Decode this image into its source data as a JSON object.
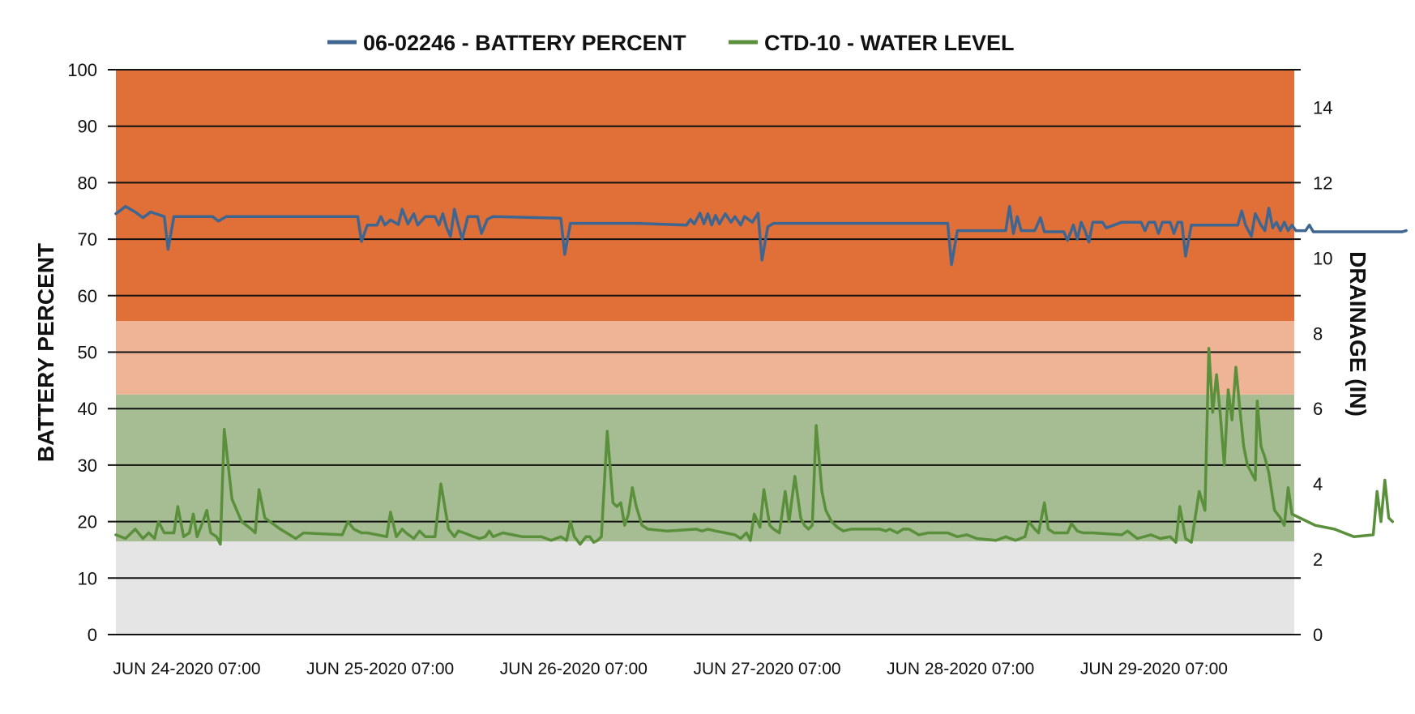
{
  "chart_data": {
    "type": "line",
    "title": "",
    "legend": {
      "placement": "top-center",
      "entries": [
        {
          "label": "06-02246 - BATTERY PERCENT",
          "color": "#3e6690"
        },
        {
          "label": "CTD-10 - WATER LEVEL",
          "color": "#5a8f3c"
        }
      ]
    },
    "x_axis": {
      "ticks": [
        "JUN 24-2020  07:00",
        "JUN 25-2020  07:00",
        "JUN 26-2020  07:00",
        "JUN 27-2020  07:00",
        "JUN 28-2020  07:00",
        "JUN 29-2020  07:00"
      ],
      "range_days": [
        23.9,
        30.0
      ]
    },
    "y_axis_left": {
      "label": "BATTERY PERCENT",
      "ylim": [
        0,
        100
      ],
      "ticks": [
        0,
        10,
        20,
        30,
        40,
        50,
        60,
        70,
        80,
        90,
        100
      ]
    },
    "y_axis_right": {
      "label": "DRAINAGE (IN)",
      "ylim": [
        0,
        15
      ],
      "ticks": [
        0,
        2,
        4,
        6,
        8,
        10,
        12,
        14
      ]
    },
    "grid": true,
    "bands": [
      {
        "from": 0,
        "to": 16.5,
        "color": "#e5e5e5"
      },
      {
        "from": 16.5,
        "to": 42.5,
        "color": "#a6bd93"
      },
      {
        "from": 42.5,
        "to": 55.5,
        "color": "#efb496"
      },
      {
        "from": 55.5,
        "to": 100,
        "color": "#e07038"
      }
    ],
    "series": [
      {
        "name": "06-02246 - BATTERY PERCENT",
        "axis": "left",
        "color": "#3e6690",
        "points": [
          [
            23.9,
            74.5
          ],
          [
            23.95,
            75.8
          ],
          [
            24.0,
            74.8
          ],
          [
            24.04,
            73.8
          ],
          [
            24.08,
            74.8
          ],
          [
            24.15,
            74.0
          ],
          [
            24.17,
            68.2
          ],
          [
            24.2,
            74.0
          ],
          [
            24.4,
            74.0
          ],
          [
            24.43,
            73.2
          ],
          [
            24.47,
            74.0
          ],
          [
            24.7,
            74.0
          ],
          [
            25.15,
            74.0
          ],
          [
            25.17,
            69.6
          ],
          [
            25.2,
            72.5
          ],
          [
            25.25,
            72.5
          ],
          [
            25.27,
            74.0
          ],
          [
            25.29,
            72.5
          ],
          [
            25.32,
            73.4
          ],
          [
            25.36,
            72.6
          ],
          [
            25.38,
            75.3
          ],
          [
            25.41,
            72.7
          ],
          [
            25.44,
            74.5
          ],
          [
            25.46,
            72.5
          ],
          [
            25.5,
            74.0
          ],
          [
            25.55,
            74.0
          ],
          [
            25.57,
            72.5
          ],
          [
            25.59,
            74.5
          ],
          [
            25.61,
            72.0
          ],
          [
            25.63,
            70.5
          ],
          [
            25.65,
            75.3
          ],
          [
            25.67,
            72.5
          ],
          [
            25.69,
            70.0
          ],
          [
            25.72,
            74.0
          ],
          [
            25.77,
            74.0
          ],
          [
            25.79,
            71.0
          ],
          [
            25.82,
            73.5
          ],
          [
            25.85,
            74.0
          ],
          [
            26.2,
            73.7
          ],
          [
            26.22,
            67.3
          ],
          [
            26.25,
            72.8
          ],
          [
            26.6,
            72.8
          ],
          [
            26.85,
            72.5
          ],
          [
            26.87,
            73.5
          ],
          [
            26.89,
            72.7
          ],
          [
            26.92,
            74.6
          ],
          [
            26.94,
            72.7
          ],
          [
            26.96,
            74.5
          ],
          [
            26.98,
            72.5
          ],
          [
            27.0,
            74.2
          ],
          [
            27.02,
            72.7
          ],
          [
            27.05,
            74.5
          ],
          [
            27.08,
            73.0
          ],
          [
            27.1,
            74.0
          ],
          [
            27.13,
            72.5
          ],
          [
            27.15,
            74.0
          ],
          [
            27.19,
            73.0
          ],
          [
            27.22,
            74.6
          ],
          [
            27.24,
            66.3
          ],
          [
            27.27,
            72.2
          ],
          [
            27.3,
            72.8
          ],
          [
            27.6,
            72.8
          ],
          [
            28.2,
            72.8
          ],
          [
            28.22,
            65.5
          ],
          [
            28.25,
            71.5
          ],
          [
            28.5,
            71.5
          ],
          [
            28.52,
            75.8
          ],
          [
            28.54,
            71.0
          ],
          [
            28.56,
            74.0
          ],
          [
            28.58,
            71.5
          ],
          [
            28.65,
            71.5
          ],
          [
            28.68,
            73.8
          ],
          [
            28.7,
            71.3
          ],
          [
            28.8,
            71.3
          ],
          [
            28.82,
            69.8
          ],
          [
            28.85,
            72.5
          ],
          [
            28.87,
            70.0
          ],
          [
            28.89,
            73.0
          ],
          [
            28.91,
            71.5
          ],
          [
            28.93,
            69.5
          ],
          [
            28.95,
            73.0
          ],
          [
            29.0,
            73.0
          ],
          [
            29.02,
            72.0
          ],
          [
            29.1,
            73.0
          ],
          [
            29.2,
            73.0
          ],
          [
            29.22,
            71.5
          ],
          [
            29.24,
            73.0
          ],
          [
            29.27,
            73.0
          ],
          [
            29.29,
            71.0
          ],
          [
            29.31,
            73.0
          ],
          [
            29.35,
            73.0
          ],
          [
            29.37,
            71.0
          ],
          [
            29.39,
            73.0
          ],
          [
            29.41,
            73.0
          ],
          [
            29.43,
            67.0
          ],
          [
            29.46,
            72.5
          ],
          [
            29.6,
            72.5
          ],
          [
            29.7,
            72.5
          ],
          [
            29.72,
            75.0
          ],
          [
            29.74,
            72.5
          ],
          [
            29.77,
            70.5
          ],
          [
            29.79,
            74.5
          ],
          [
            29.82,
            72.5
          ],
          [
            29.84,
            71.5
          ],
          [
            29.86,
            75.5
          ],
          [
            29.88,
            72.0
          ],
          [
            29.9,
            73.0
          ],
          [
            29.92,
            71.5
          ],
          [
            29.94,
            73.0
          ],
          [
            29.96,
            71.5
          ],
          [
            29.98,
            72.5
          ],
          [
            30.0,
            71.5
          ],
          [
            30.05,
            71.5
          ],
          [
            30.07,
            72.5
          ],
          [
            30.09,
            71.3
          ],
          [
            30.5,
            71.3
          ],
          [
            30.55,
            71.3
          ],
          [
            30.57,
            71.5
          ]
        ]
      },
      {
        "name": "CTD-10 - WATER LEVEL",
        "axis": "right",
        "color": "#5a8f3c",
        "points": [
          [
            23.9,
            2.65
          ],
          [
            23.95,
            2.55
          ],
          [
            24.0,
            2.8
          ],
          [
            24.04,
            2.55
          ],
          [
            24.07,
            2.7
          ],
          [
            24.1,
            2.55
          ],
          [
            24.12,
            3.0
          ],
          [
            24.15,
            2.7
          ],
          [
            24.2,
            2.7
          ],
          [
            24.22,
            3.4
          ],
          [
            24.25,
            2.6
          ],
          [
            24.28,
            2.7
          ],
          [
            24.3,
            3.2
          ],
          [
            24.32,
            2.6
          ],
          [
            24.35,
            3.0
          ],
          [
            24.37,
            3.3
          ],
          [
            24.39,
            2.7
          ],
          [
            24.42,
            2.6
          ],
          [
            24.44,
            2.4
          ],
          [
            24.46,
            5.45
          ],
          [
            24.5,
            3.6
          ],
          [
            24.55,
            3.0
          ],
          [
            24.6,
            2.8
          ],
          [
            24.62,
            2.7
          ],
          [
            24.64,
            3.85
          ],
          [
            24.67,
            3.1
          ],
          [
            24.75,
            2.8
          ],
          [
            24.83,
            2.55
          ],
          [
            24.87,
            2.7
          ],
          [
            25.07,
            2.65
          ],
          [
            25.1,
            3.0
          ],
          [
            25.13,
            2.8
          ],
          [
            25.17,
            2.7
          ],
          [
            25.2,
            2.7
          ],
          [
            25.3,
            2.6
          ],
          [
            25.32,
            3.25
          ],
          [
            25.35,
            2.6
          ],
          [
            25.38,
            2.8
          ],
          [
            25.4,
            2.7
          ],
          [
            25.44,
            2.55
          ],
          [
            25.47,
            2.75
          ],
          [
            25.5,
            2.6
          ],
          [
            25.55,
            2.6
          ],
          [
            25.58,
            4.0
          ],
          [
            25.6,
            3.4
          ],
          [
            25.62,
            2.8
          ],
          [
            25.65,
            2.6
          ],
          [
            25.67,
            2.75
          ],
          [
            25.7,
            2.7
          ],
          [
            25.75,
            2.6
          ],
          [
            25.78,
            2.55
          ],
          [
            25.81,
            2.6
          ],
          [
            25.83,
            2.75
          ],
          [
            25.85,
            2.6
          ],
          [
            25.9,
            2.7
          ],
          [
            26.0,
            2.6
          ],
          [
            26.1,
            2.6
          ],
          [
            26.15,
            2.5
          ],
          [
            26.2,
            2.6
          ],
          [
            26.23,
            2.5
          ],
          [
            26.25,
            3.0
          ],
          [
            26.27,
            2.6
          ],
          [
            26.3,
            2.4
          ],
          [
            26.33,
            2.6
          ],
          [
            26.35,
            2.6
          ],
          [
            26.37,
            2.45
          ],
          [
            26.39,
            2.5
          ],
          [
            26.41,
            2.6
          ],
          [
            26.44,
            5.4
          ],
          [
            26.47,
            3.5
          ],
          [
            26.49,
            3.4
          ],
          [
            26.51,
            3.5
          ],
          [
            26.53,
            2.9
          ],
          [
            26.55,
            3.2
          ],
          [
            26.57,
            3.9
          ],
          [
            26.59,
            3.4
          ],
          [
            26.62,
            2.9
          ],
          [
            26.65,
            2.8
          ],
          [
            26.75,
            2.75
          ],
          [
            26.9,
            2.8
          ],
          [
            26.93,
            2.75
          ],
          [
            26.96,
            2.8
          ],
          [
            27.0,
            2.75
          ],
          [
            27.05,
            2.7
          ],
          [
            27.1,
            2.65
          ],
          [
            27.13,
            2.55
          ],
          [
            27.16,
            2.7
          ],
          [
            27.18,
            2.5
          ],
          [
            27.2,
            3.2
          ],
          [
            27.23,
            2.85
          ],
          [
            27.25,
            3.85
          ],
          [
            27.28,
            2.9
          ],
          [
            27.3,
            2.8
          ],
          [
            27.33,
            2.7
          ],
          [
            27.36,
            3.8
          ],
          [
            27.38,
            3.0
          ],
          [
            27.41,
            4.2
          ],
          [
            27.44,
            3.1
          ],
          [
            27.46,
            2.9
          ],
          [
            27.48,
            2.8
          ],
          [
            27.5,
            2.9
          ],
          [
            27.52,
            5.55
          ],
          [
            27.55,
            3.8
          ],
          [
            27.57,
            3.3
          ],
          [
            27.6,
            3.0
          ],
          [
            27.63,
            2.85
          ],
          [
            27.66,
            2.75
          ],
          [
            27.7,
            2.8
          ],
          [
            27.75,
            2.8
          ],
          [
            27.85,
            2.8
          ],
          [
            27.88,
            2.75
          ],
          [
            27.9,
            2.8
          ],
          [
            27.94,
            2.7
          ],
          [
            27.97,
            2.8
          ],
          [
            28.0,
            2.8
          ],
          [
            28.05,
            2.65
          ],
          [
            28.1,
            2.7
          ],
          [
            28.2,
            2.7
          ],
          [
            28.25,
            2.6
          ],
          [
            28.3,
            2.65
          ],
          [
            28.35,
            2.55
          ],
          [
            28.45,
            2.5
          ],
          [
            28.5,
            2.6
          ],
          [
            28.55,
            2.5
          ],
          [
            28.6,
            2.6
          ],
          [
            28.62,
            3.0
          ],
          [
            28.65,
            2.8
          ],
          [
            28.67,
            2.7
          ],
          [
            28.7,
            3.5
          ],
          [
            28.72,
            2.8
          ],
          [
            28.75,
            2.7
          ],
          [
            28.82,
            2.7
          ],
          [
            28.84,
            2.95
          ],
          [
            28.87,
            2.75
          ],
          [
            28.9,
            2.7
          ],
          [
            28.95,
            2.7
          ],
          [
            29.1,
            2.65
          ],
          [
            29.13,
            2.75
          ],
          [
            29.18,
            2.55
          ],
          [
            29.25,
            2.65
          ],
          [
            29.3,
            2.55
          ],
          [
            29.35,
            2.6
          ],
          [
            29.38,
            2.45
          ],
          [
            29.4,
            3.4
          ],
          [
            29.43,
            2.55
          ],
          [
            29.46,
            2.45
          ],
          [
            29.5,
            3.8
          ],
          [
            29.53,
            3.3
          ],
          [
            29.55,
            7.6
          ],
          [
            29.57,
            5.9
          ],
          [
            29.59,
            6.9
          ],
          [
            29.61,
            5.8
          ],
          [
            29.63,
            4.5
          ],
          [
            29.65,
            6.5
          ],
          [
            29.67,
            5.7
          ],
          [
            29.69,
            7.1
          ],
          [
            29.71,
            6.0
          ],
          [
            29.73,
            5.0
          ],
          [
            29.75,
            4.5
          ],
          [
            29.77,
            4.3
          ],
          [
            29.79,
            4.1
          ],
          [
            29.8,
            6.2
          ],
          [
            29.82,
            5.0
          ],
          [
            29.84,
            4.7
          ],
          [
            29.86,
            4.3
          ],
          [
            29.89,
            3.3
          ],
          [
            29.92,
            3.1
          ],
          [
            29.94,
            2.9
          ],
          [
            29.96,
            3.9
          ],
          [
            29.98,
            3.2
          ],
          [
            30.02,
            3.1
          ],
          [
            30.1,
            2.9
          ],
          [
            30.2,
            2.8
          ],
          [
            30.3,
            2.6
          ],
          [
            30.4,
            2.65
          ],
          [
            30.42,
            3.8
          ],
          [
            30.44,
            3.0
          ],
          [
            30.46,
            4.1
          ],
          [
            30.48,
            3.1
          ],
          [
            30.5,
            3.0
          ]
        ]
      }
    ]
  }
}
